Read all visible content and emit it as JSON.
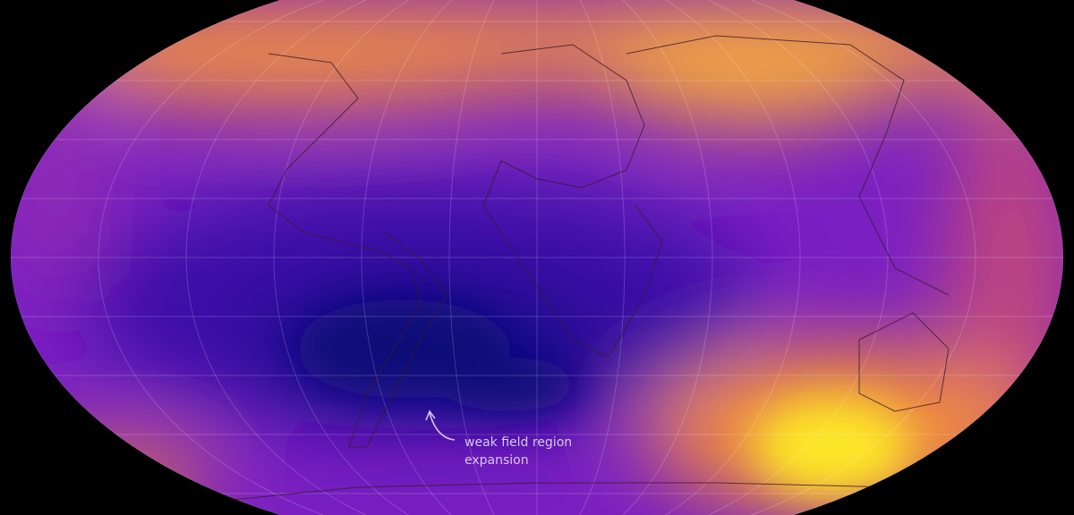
{
  "map": {
    "projection": "robinson-like world map",
    "colormap": "plasma",
    "colors": {
      "background": "#000000",
      "low": "#0d0878",
      "mid": "#7a1fc2",
      "high": "#f08a3e",
      "peak": "#fde725"
    },
    "annotation": {
      "line1": "weak field region",
      "line2": "expansion",
      "icon": "curved-arrow-icon"
    }
  }
}
